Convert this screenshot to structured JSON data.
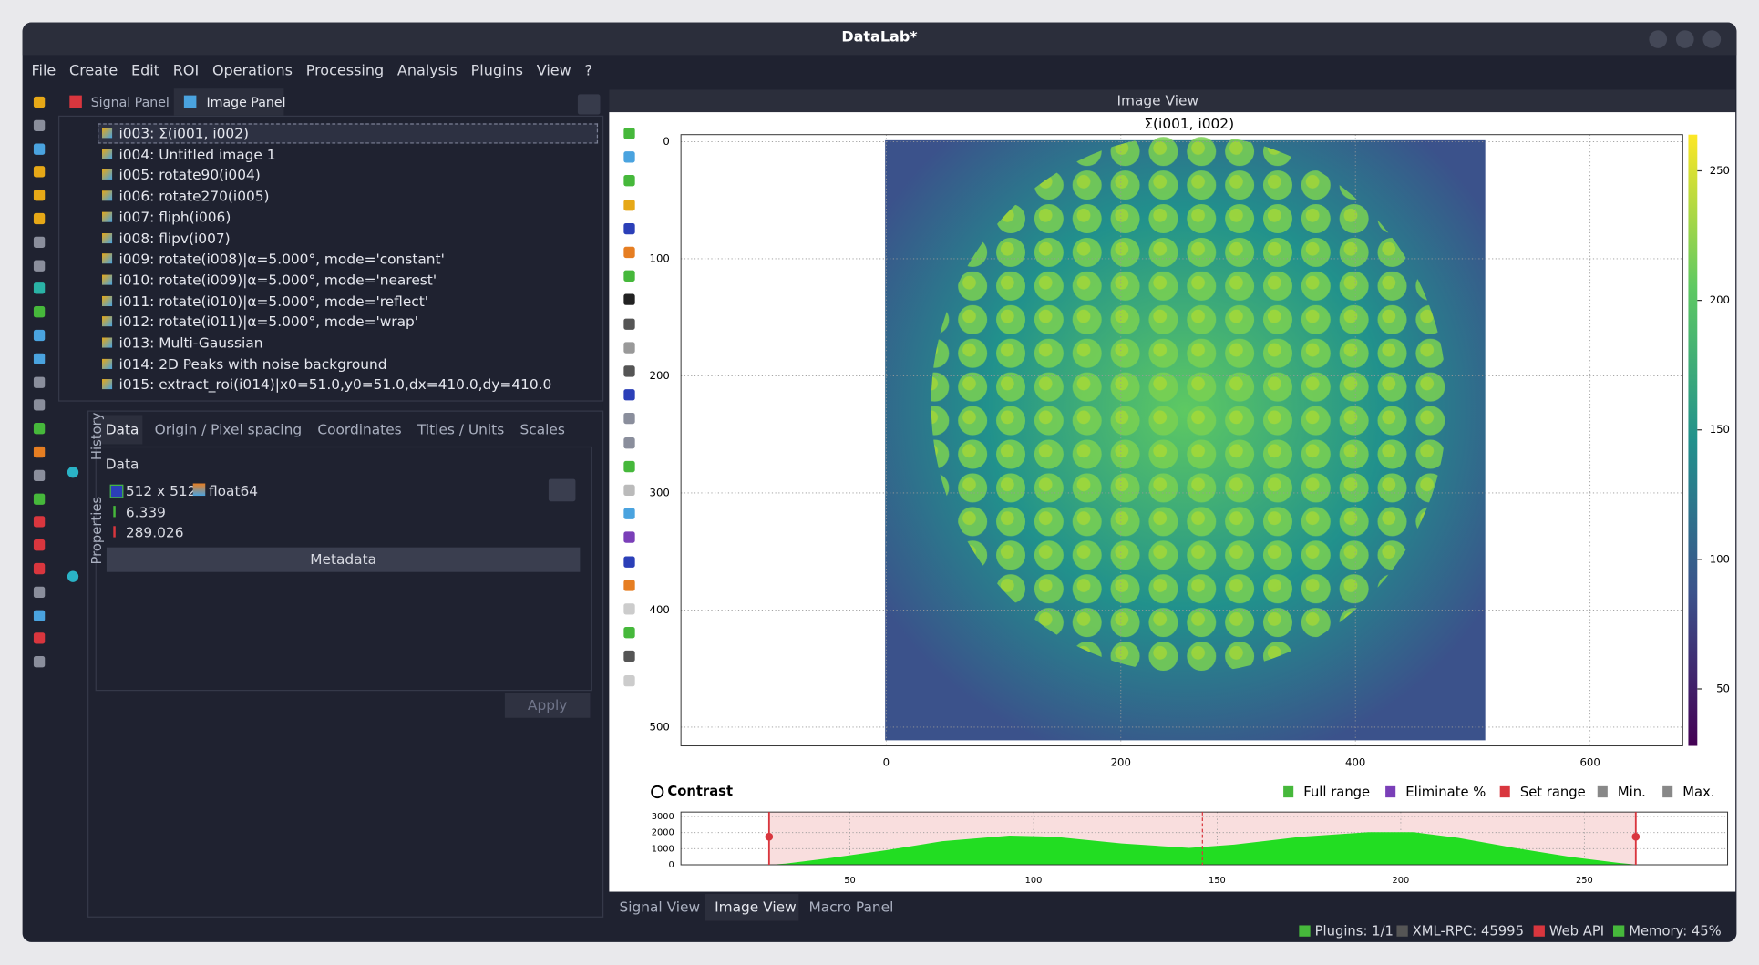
{
  "window": {
    "title": "DataLab*"
  },
  "menu": [
    "File",
    "Create",
    "Edit",
    "ROI",
    "Operations",
    "Processing",
    "Analysis",
    "Plugins",
    "View",
    "?"
  ],
  "panel_tabs": [
    "Signal Panel",
    "Image Panel"
  ],
  "objects": [
    "i003: Σ(i001, i002)",
    "i004: Untitled image 1",
    "i005: rotate90(i004)",
    "i006: rotate270(i005)",
    "i007: fliph(i006)",
    "i008: flipv(i007)",
    "i009: rotate(i008)|α=5.000°, mode='constant'",
    "i010: rotate(i009)|α=5.000°, mode='nearest'",
    "i011: rotate(i010)|α=5.000°, mode='reflect'",
    "i012: rotate(i011)|α=5.000°, mode='wrap'",
    "i013: Multi-Gaussian",
    "i014: 2D Peaks with noise background",
    "i015: extract_roi(i014)|x0=51.0,y0=51.0,dx=410.0,dy=410.0"
  ],
  "side_tabs": [
    "History",
    "Properties"
  ],
  "property_tabs": [
    "Data",
    "Origin / Pixel spacing",
    "Coordinates",
    "Titles / Units",
    "Scales"
  ],
  "data_group": {
    "title": "Data",
    "size": "512 x 512",
    "dtype": "float64",
    "min": 6.339,
    "max": 289.026,
    "metadata": "Metadata",
    "apply": "Apply"
  },
  "view": {
    "title": "Image View",
    "plot_title": "Σ(i001, i002)",
    "xlim": [
      -175,
      679
    ],
    "xticks": [
      0,
      200,
      400,
      600
    ],
    "ylim": [
      -6,
      516
    ],
    "yticks": [
      0,
      100,
      200,
      300,
      400,
      500
    ],
    "clim": [
      28,
      264
    ],
    "cticks": [
      50,
      100,
      150,
      200,
      250
    ]
  },
  "contrast": {
    "title": "Contrast",
    "buttons": [
      "Full range",
      "Eliminate %",
      "Set range",
      "Min.",
      "Max."
    ],
    "xlim": [
      4,
      289
    ],
    "xticks": [
      50,
      100,
      150,
      200,
      250
    ],
    "ylim": [
      0,
      3000
    ],
    "yticks": [
      0,
      1000,
      2000,
      3000
    ],
    "range": [
      28,
      264
    ]
  },
  "bottom_tabs": [
    "Signal View",
    "Image View",
    "Macro Panel"
  ],
  "status": [
    "Plugins: 1/1",
    "XML-RPC: 45995",
    "Web API",
    "Memory: 45%"
  ]
}
